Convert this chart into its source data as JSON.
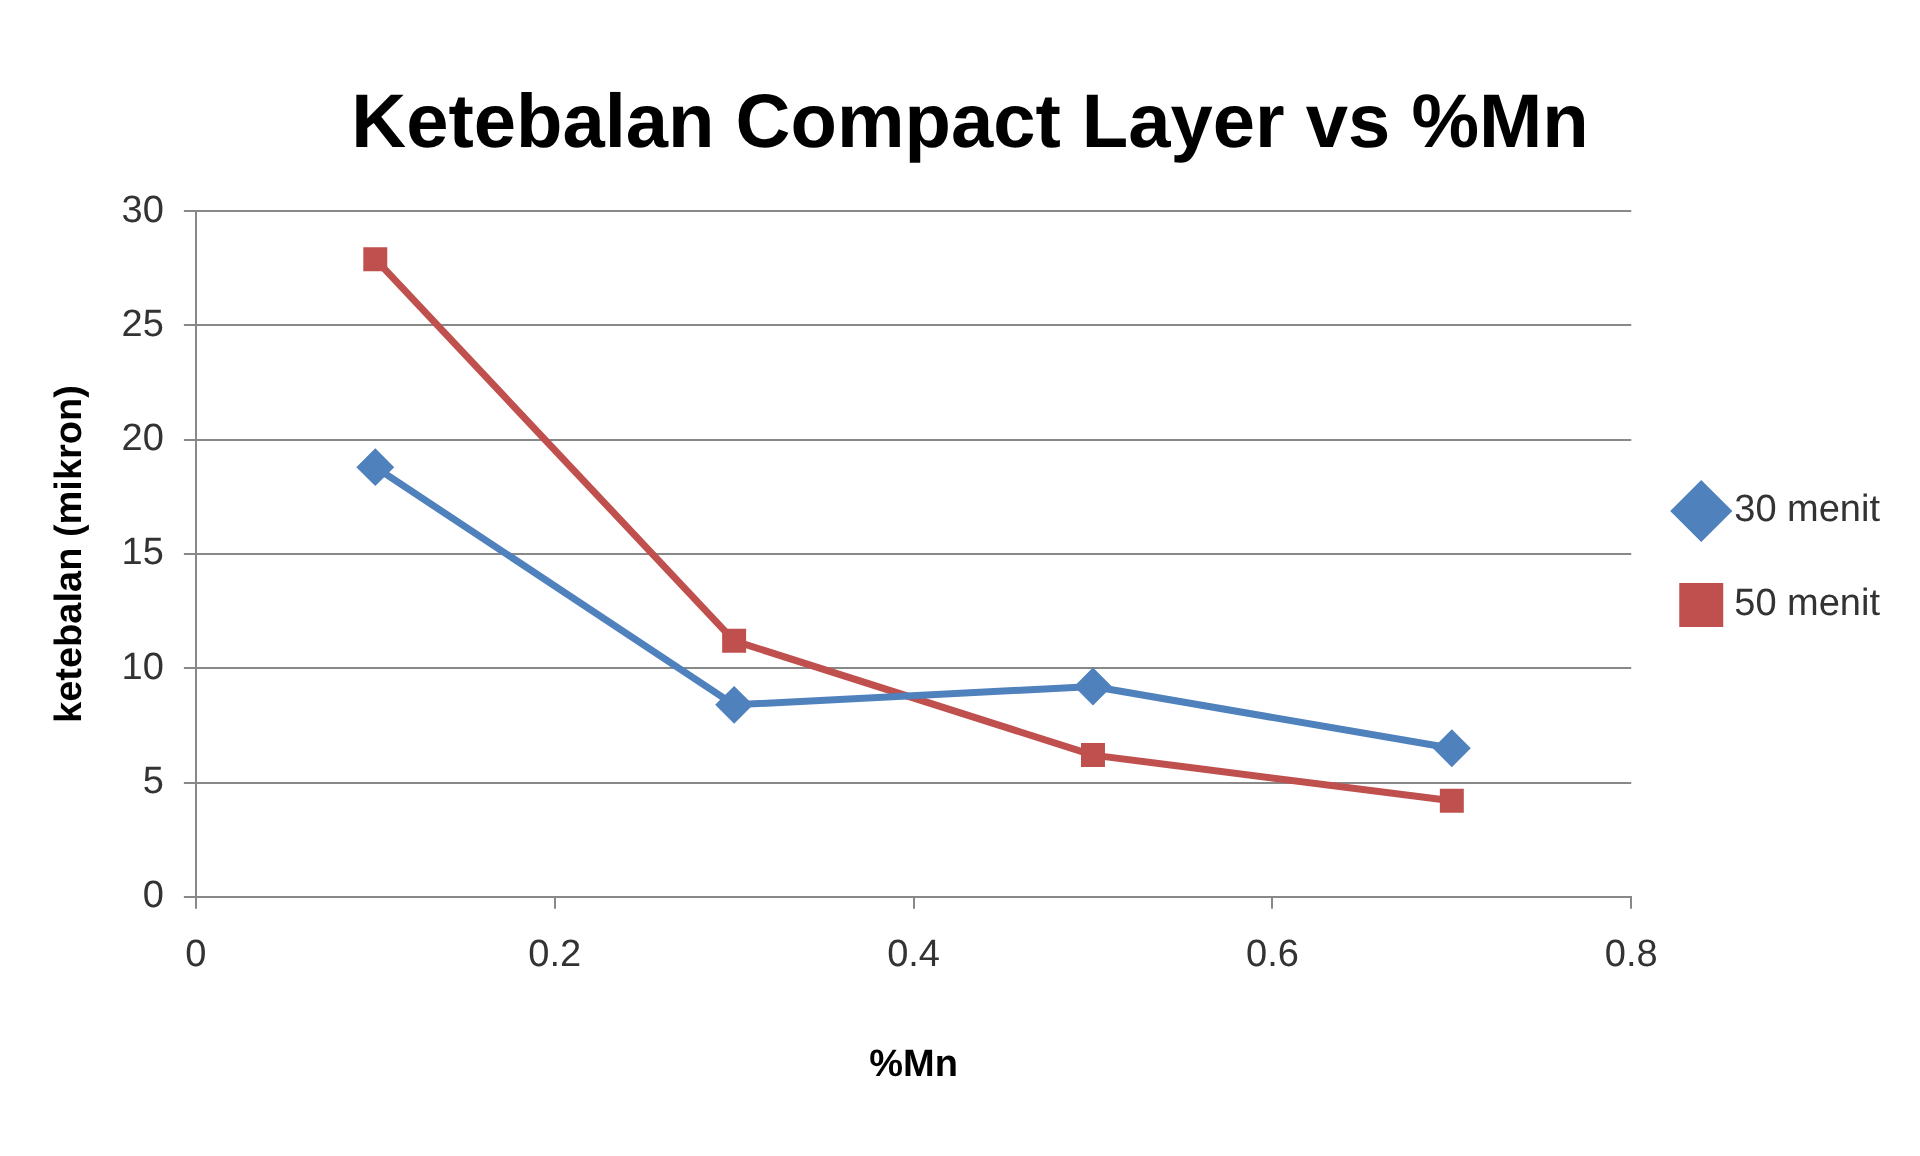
{
  "chart_data": {
    "type": "line",
    "title": "Ketebalan Compact Layer vs %Mn",
    "xlabel": "%Mn",
    "ylabel": "ketebalan (mikron)",
    "x": [
      0.1,
      0.3,
      0.5,
      0.7
    ],
    "series": [
      {
        "name": "30 menit",
        "color": "#4f81bd",
        "marker": "diamond",
        "values": [
          18.8,
          8.4,
          9.2,
          6.5
        ]
      },
      {
        "name": "50 menit",
        "color": "#c0504d",
        "marker": "square",
        "values": [
          27.9,
          11.2,
          6.2,
          4.2
        ]
      }
    ],
    "xlim": [
      0,
      0.8
    ],
    "xticks": [
      0,
      0.2,
      0.4,
      0.6,
      0.8
    ],
    "ylim": [
      0,
      30
    ],
    "yticks": [
      0,
      5,
      10,
      15,
      20,
      25,
      30
    ],
    "grid": "y",
    "legend": "right"
  }
}
